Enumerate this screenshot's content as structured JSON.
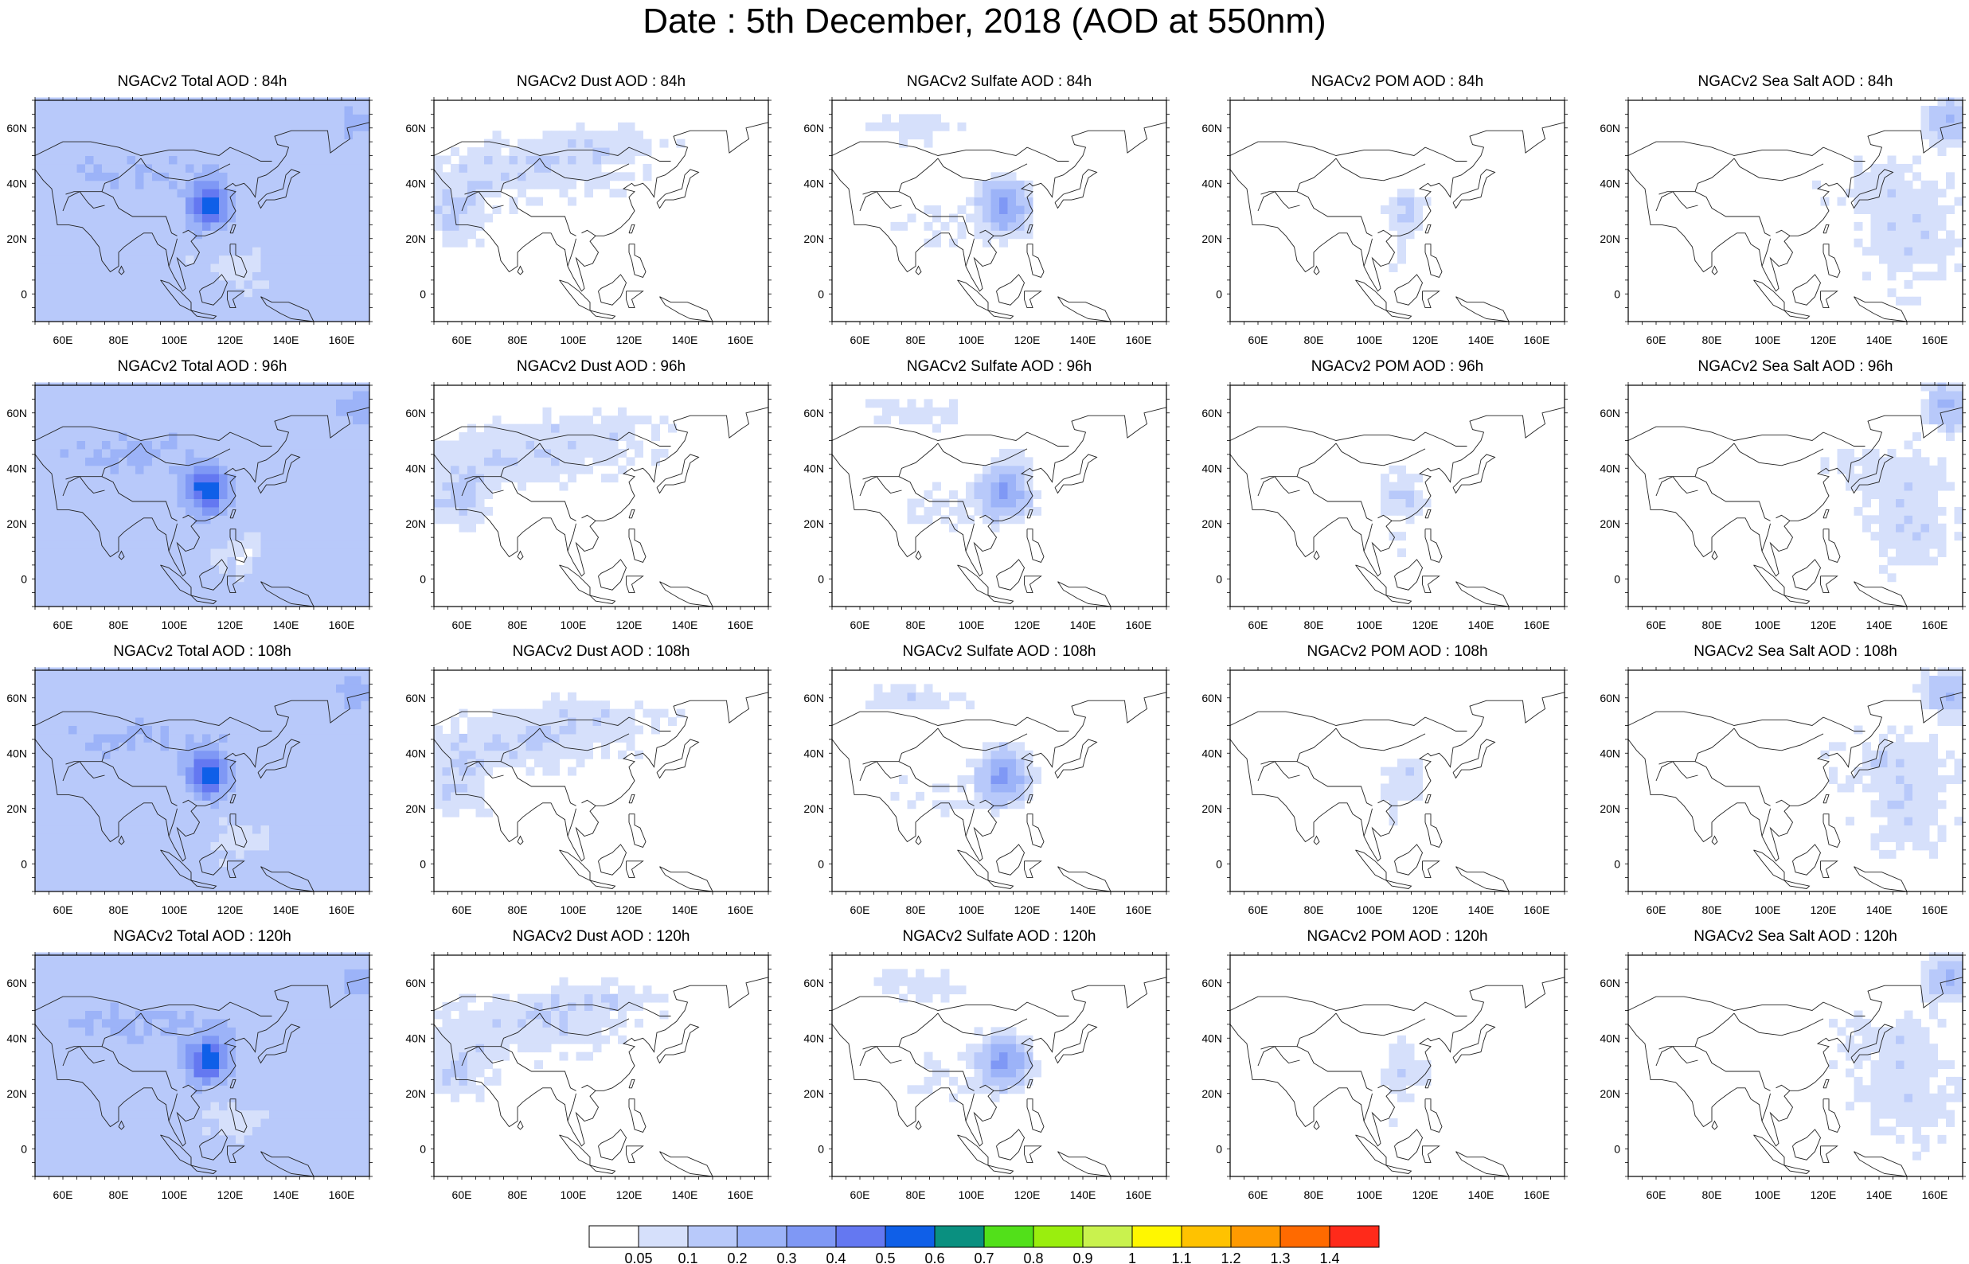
{
  "title": "Date : 5th December, 2018 (AOD at 550nm)",
  "rows": [
    {
      "label": "84h",
      "panels": [
        {
          "title": "NGACv2 Total AOD : 84h",
          "species": "total",
          "lat_ticks": [
            "60N",
            "40N",
            "20N",
            "0"
          ],
          "lon_ticks": [
            "60E",
            "80E",
            "100E",
            "120E",
            "140E",
            "160E"
          ]
        },
        {
          "title": "NGACv2 Dust AOD : 84h",
          "species": "dust",
          "lat_ticks": [
            "60N",
            "40N",
            "20N",
            "0"
          ],
          "lon_ticks": [
            "60E",
            "80E",
            "100E",
            "120E",
            "140E",
            "160E"
          ]
        },
        {
          "title": "NGACv2 Sulfate AOD : 84h",
          "species": "sulfate",
          "lat_ticks": [
            "60N",
            "40N",
            "20N",
            "0"
          ],
          "lon_ticks": [
            "60E",
            "80E",
            "100E",
            "120E",
            "140E",
            "160E"
          ]
        },
        {
          "title": "NGACv2 POM AOD : 84h",
          "species": "pom",
          "lat_ticks": [
            "60N",
            "40N",
            "20N",
            "0"
          ],
          "lon_ticks": [
            "60E",
            "80E",
            "100E",
            "120E",
            "140E",
            "160E"
          ]
        },
        {
          "title": "NGACv2 Sea Salt AOD : 84h",
          "species": "seasalt",
          "lat_ticks": [
            "60N",
            "40N",
            "20N",
            "0"
          ],
          "lon_ticks": [
            "60E",
            "80E",
            "100E",
            "120E",
            "140E",
            "160E"
          ]
        }
      ]
    },
    {
      "label": "96h",
      "panels": [
        {
          "title": "NGACv2 Total AOD : 96h",
          "species": "total",
          "lat_ticks": [
            "60N",
            "40N",
            "20N",
            "0"
          ],
          "lon_ticks": [
            "60E",
            "80E",
            "100E",
            "120E",
            "140E",
            "160E"
          ]
        },
        {
          "title": "NGACv2 Dust AOD : 96h",
          "species": "dust",
          "lat_ticks": [
            "60N",
            "40N",
            "20N",
            "0"
          ],
          "lon_ticks": [
            "60E",
            "80E",
            "100E",
            "120E",
            "140E",
            "160E"
          ]
        },
        {
          "title": "NGACv2 Sulfate AOD : 96h",
          "species": "sulfate",
          "lat_ticks": [
            "60N",
            "40N",
            "20N",
            "0"
          ],
          "lon_ticks": [
            "60E",
            "80E",
            "100E",
            "120E",
            "140E",
            "160E"
          ]
        },
        {
          "title": "NGACv2 POM AOD : 96h",
          "species": "pom",
          "lat_ticks": [
            "60N",
            "40N",
            "20N",
            "0"
          ],
          "lon_ticks": [
            "60E",
            "80E",
            "100E",
            "120E",
            "140E",
            "160E"
          ]
        },
        {
          "title": "NGACv2 Sea Salt AOD : 96h",
          "species": "seasalt",
          "lat_ticks": [
            "60N",
            "40N",
            "20N",
            "0"
          ],
          "lon_ticks": [
            "60E",
            "80E",
            "100E",
            "120E",
            "140E",
            "160E"
          ]
        }
      ]
    },
    {
      "label": "108h",
      "panels": [
        {
          "title": "NGACv2 Total AOD : 108h",
          "species": "total",
          "lat_ticks": [
            "60N",
            "40N",
            "20N",
            "0"
          ],
          "lon_ticks": [
            "60E",
            "80E",
            "100E",
            "120E",
            "140E",
            "160E"
          ]
        },
        {
          "title": "NGACv2 Dust AOD : 108h",
          "species": "dust",
          "lat_ticks": [
            "60N",
            "40N",
            "20N",
            "0"
          ],
          "lon_ticks": [
            "60E",
            "80E",
            "100E",
            "120E",
            "140E",
            "160E"
          ]
        },
        {
          "title": "NGACv2 Sulfate AOD : 108h",
          "species": "sulfate",
          "lat_ticks": [
            "60N",
            "40N",
            "20N",
            "0"
          ],
          "lon_ticks": [
            "60E",
            "80E",
            "100E",
            "120E",
            "140E",
            "160E"
          ]
        },
        {
          "title": "NGACv2 POM AOD : 108h",
          "species": "pom",
          "lat_ticks": [
            "60N",
            "40N",
            "20N",
            "0"
          ],
          "lon_ticks": [
            "60E",
            "80E",
            "100E",
            "120E",
            "140E",
            "160E"
          ]
        },
        {
          "title": "NGACv2 Sea Salt AOD : 108h",
          "species": "seasalt",
          "lat_ticks": [
            "60N",
            "40N",
            "20N",
            "0"
          ],
          "lon_ticks": [
            "60E",
            "80E",
            "100E",
            "120E",
            "140E",
            "160E"
          ]
        }
      ]
    },
    {
      "label": "120h",
      "panels": [
        {
          "title": "NGACv2 Total AOD : 120h",
          "species": "total",
          "lat_ticks": [
            "60N",
            "40N",
            "20N",
            "0"
          ],
          "lon_ticks": [
            "60E",
            "80E",
            "100E",
            "120E",
            "140E",
            "160E"
          ]
        },
        {
          "title": "NGACv2 Dust AOD : 120h",
          "species": "dust",
          "lat_ticks": [
            "60N",
            "40N",
            "20N",
            "0"
          ],
          "lon_ticks": [
            "60E",
            "80E",
            "100E",
            "120E",
            "140E",
            "160E"
          ]
        },
        {
          "title": "NGACv2 Sulfate AOD : 120h",
          "species": "sulfate",
          "lat_ticks": [
            "60N",
            "40N",
            "20N",
            "0"
          ],
          "lon_ticks": [
            "60E",
            "80E",
            "100E",
            "120E",
            "140E",
            "160E"
          ]
        },
        {
          "title": "NGACv2 POM AOD : 120h",
          "species": "pom",
          "lat_ticks": [
            "60N",
            "40N",
            "20N",
            "0"
          ],
          "lon_ticks": [
            "60E",
            "80E",
            "100E",
            "120E",
            "140E",
            "160E"
          ]
        },
        {
          "title": "NGACv2 Sea Salt  AOD : 120h",
          "species": "seasalt",
          "lat_ticks": [
            "60N",
            "40N",
            "20N",
            "0"
          ],
          "lon_ticks": [
            "60E",
            "80E",
            "100E",
            "120E",
            "140E",
            "160E"
          ]
        }
      ]
    }
  ],
  "colorbar": {
    "labels": [
      "0.05",
      "0.1",
      "0.2",
      "0.3",
      "0.4",
      "0.5",
      "0.6",
      "0.7",
      "0.8",
      "0.9",
      "1",
      "1.1",
      "1.2",
      "1.3",
      "1.4"
    ],
    "colors": [
      "#ffffff",
      "#d6e0fb",
      "#b8c9fa",
      "#9cb3f8",
      "#7f98f5",
      "#6478f1",
      "#0f5fe8",
      "#0a9080",
      "#52e01a",
      "#9aee0e",
      "#c9f24e",
      "#fff700",
      "#ffc200",
      "#ff9a00",
      "#ff6a00",
      "#ff2a1a"
    ]
  }
}
